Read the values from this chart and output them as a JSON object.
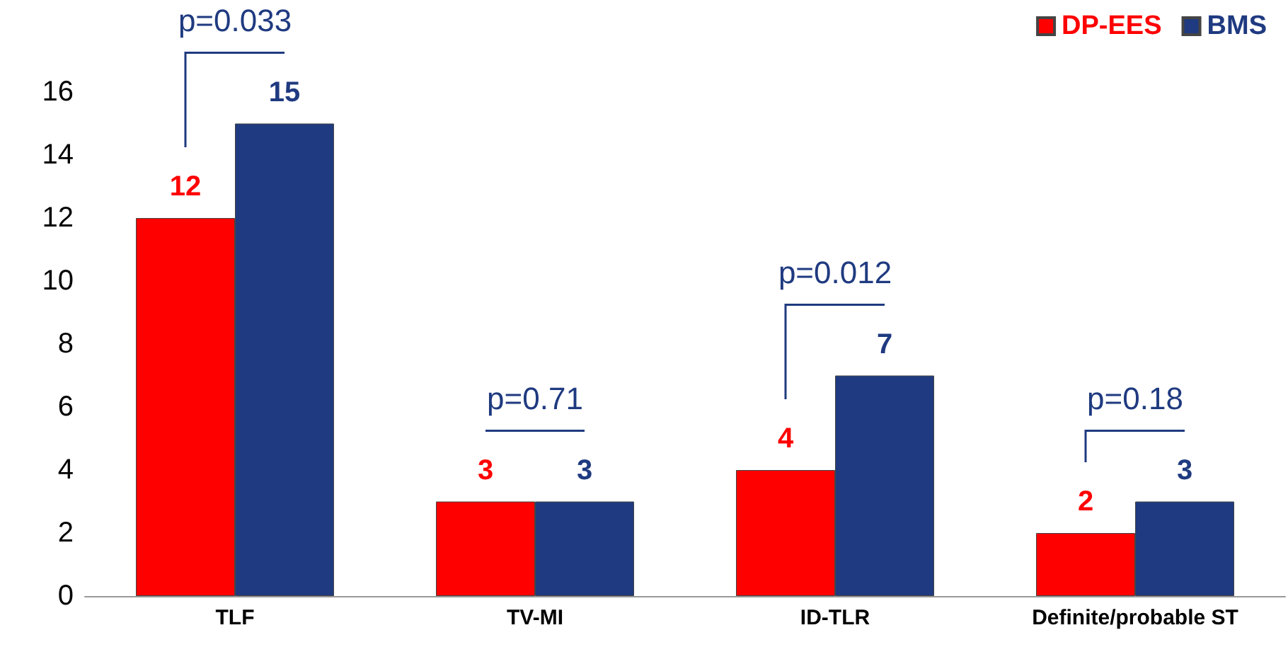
{
  "chart_data": {
    "type": "bar",
    "categories": [
      "TLF",
      "TV-MI",
      "ID-TLR",
      "Definite/probable ST"
    ],
    "series": [
      {
        "name": "DP-EES",
        "color": "#ff0000",
        "values": [
          12,
          3,
          4,
          2
        ]
      },
      {
        "name": "BMS",
        "color": "#1f3a80",
        "values": [
          15,
          3,
          7,
          3
        ]
      }
    ],
    "ylim": [
      0,
      16
    ],
    "yticks": [
      0,
      2,
      4,
      6,
      8,
      10,
      12,
      14,
      16
    ],
    "annotations": [
      "p=0.033",
      "p=0.71",
      "p=0.012",
      "p=0.18"
    ],
    "data_labels": true,
    "grid": false,
    "legend": "top right"
  }
}
